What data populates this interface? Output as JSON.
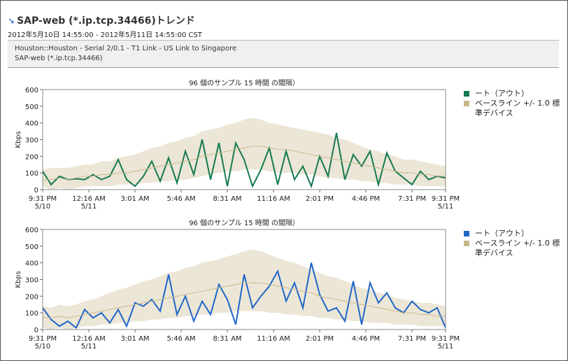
{
  "header": {
    "title": "SAP-web (*.ip.tcp.34466)トレンド",
    "range": "2012年5月10日 14:55:00 - 2012年5月11日 14:55:00 CST",
    "info": [
      "Houston::Houston - Serial 2/0.1 - T1 Link - US Link to Singapore",
      "SAP-web (*.ip.tcp.34466)"
    ]
  },
  "chart_data": [
    {
      "type": "line",
      "title": "96 個のサンプル 15 時間 の間隔）",
      "ylabel": "Kbps",
      "x": [
        0,
        0.5,
        1,
        1.5,
        2,
        2.5,
        3,
        3.5,
        4,
        4.5,
        5,
        5.5,
        6,
        6.5,
        7,
        7.5,
        8,
        8.5,
        9,
        9.5,
        10,
        10.5,
        11,
        11.5,
        12,
        12.5,
        13,
        13.5,
        14,
        14.5,
        15,
        15.5,
        16,
        16.5,
        17,
        17.5,
        18,
        18.5,
        19,
        19.5,
        20,
        20.5,
        21,
        21.5,
        22,
        22.5,
        23,
        23.5,
        24
      ],
      "xlim": [
        0,
        24
      ],
      "ylim": [
        0,
        600
      ],
      "yticks": [
        0,
        100,
        200,
        300,
        400,
        500,
        600
      ],
      "xticks": [
        {
          "value": 0,
          "label": "9:31 PM",
          "date": "5/10"
        },
        {
          "value": 2.75,
          "label": "12:16 AM",
          "date": "5/11"
        },
        {
          "value": 5.5,
          "label": "3:01 AM"
        },
        {
          "value": 8.25,
          "label": "5:46 AM"
        },
        {
          "value": 11,
          "label": "8:31 AM"
        },
        {
          "value": 13.75,
          "label": "11:16 AM"
        },
        {
          "value": 16.5,
          "label": "2:01 PM"
        },
        {
          "value": 19.25,
          "label": "4:46 PM"
        },
        {
          "value": 22,
          "label": "7:31 PM"
        },
        {
          "value": 24,
          "label": "9:31 PM",
          "date": "5/11"
        }
      ],
      "series": [
        {
          "name": "ート（アウト）",
          "color": "#137a4f",
          "values": [
            110,
            30,
            80,
            60,
            65,
            60,
            90,
            60,
            80,
            180,
            60,
            20,
            80,
            170,
            50,
            190,
            40,
            230,
            90,
            300,
            60,
            280,
            20,
            280,
            180,
            20,
            120,
            250,
            30,
            230,
            60,
            140,
            20,
            200,
            80,
            340,
            60,
            210,
            140,
            230,
            30,
            220,
            110,
            70,
            30,
            110,
            60,
            80,
            70
          ]
        },
        {
          "name": "ベースライン +/- 1.0 標準デバイス",
          "color": "#c8b88a",
          "values": [
            60,
            60,
            70,
            60,
            70,
            80,
            80,
            90,
            90,
            100,
            100,
            110,
            120,
            130,
            140,
            150,
            160,
            170,
            180,
            200,
            210,
            220,
            230,
            240,
            250,
            260,
            260,
            250,
            240,
            240,
            230,
            220,
            210,
            200,
            190,
            180,
            170,
            160,
            150,
            140,
            130,
            120,
            110,
            100,
            100,
            90,
            90,
            80,
            80
          ],
          "lower": [
            20,
            0,
            10,
            0,
            10,
            20,
            20,
            20,
            20,
            30,
            30,
            30,
            40,
            40,
            50,
            50,
            60,
            60,
            70,
            80,
            90,
            100,
            110,
            110,
            120,
            120,
            120,
            110,
            100,
            100,
            100,
            90,
            90,
            80,
            70,
            70,
            60,
            60,
            50,
            50,
            40,
            40,
            30,
            30,
            30,
            20,
            20,
            20,
            20
          ],
          "upper": [
            120,
            130,
            130,
            130,
            140,
            150,
            150,
            170,
            170,
            190,
            200,
            210,
            230,
            250,
            260,
            280,
            290,
            310,
            320,
            350,
            360,
            370,
            390,
            400,
            420,
            430,
            420,
            400,
            390,
            380,
            370,
            360,
            350,
            340,
            330,
            310,
            300,
            280,
            260,
            240,
            230,
            210,
            200,
            180,
            180,
            170,
            160,
            150,
            140
          ]
        }
      ]
    },
    {
      "type": "line",
      "title": "96 個のサンプル 15 時間 の間隔）",
      "ylabel": "Kbps",
      "x": [
        0,
        0.5,
        1,
        1.5,
        2,
        2.5,
        3,
        3.5,
        4,
        4.5,
        5,
        5.5,
        6,
        6.5,
        7,
        7.5,
        8,
        8.5,
        9,
        9.5,
        10,
        10.5,
        11,
        11.5,
        12,
        12.5,
        13,
        13.5,
        14,
        14.5,
        15,
        15.5,
        16,
        16.5,
        17,
        17.5,
        18,
        18.5,
        19,
        19.5,
        20,
        20.5,
        21,
        21.5,
        22,
        22.5,
        23,
        23.5,
        24
      ],
      "xlim": [
        0,
        24
      ],
      "ylim": [
        0,
        600
      ],
      "yticks": [
        0,
        100,
        200,
        300,
        400,
        500,
        600
      ],
      "xticks": [
        {
          "value": 0,
          "label": "9:31 PM",
          "date": "5/10"
        },
        {
          "value": 2.75,
          "label": "12:16 AM",
          "date": "5/11"
        },
        {
          "value": 5.5,
          "label": "3:01 AM"
        },
        {
          "value": 8.25,
          "label": "5:46 AM"
        },
        {
          "value": 11,
          "label": "8:31 AM"
        },
        {
          "value": 13.75,
          "label": "11:16 AM"
        },
        {
          "value": 16.5,
          "label": "2:01 PM"
        },
        {
          "value": 19.25,
          "label": "4:46 PM"
        },
        {
          "value": 22,
          "label": "7:31 PM"
        },
        {
          "value": 24,
          "label": "9:31 PM",
          "date": "5/11"
        }
      ],
      "series": [
        {
          "name": "ート（アウト）",
          "color": "#1f66c9",
          "values": [
            130,
            60,
            20,
            50,
            10,
            120,
            70,
            100,
            40,
            120,
            20,
            160,
            140,
            180,
            110,
            330,
            90,
            200,
            50,
            170,
            90,
            270,
            180,
            30,
            330,
            130,
            200,
            260,
            350,
            170,
            280,
            130,
            400,
            210,
            110,
            130,
            50,
            290,
            30,
            280,
            160,
            220,
            130,
            100,
            170,
            120,
            100,
            130,
            10
          ]
        },
        {
          "name": "ベースライン +/- 1.0 標準デバイス",
          "color": "#c8b88a",
          "values": [
            70,
            70,
            80,
            70,
            80,
            90,
            100,
            110,
            120,
            130,
            140,
            150,
            160,
            170,
            180,
            190,
            200,
            210,
            220,
            230,
            240,
            250,
            260,
            270,
            280,
            280,
            280,
            270,
            260,
            250,
            240,
            230,
            220,
            200,
            190,
            180,
            170,
            160,
            150,
            140,
            130,
            120,
            110,
            100,
            100,
            90,
            90,
            80,
            80
          ],
          "lower": [
            10,
            0,
            10,
            0,
            10,
            20,
            20,
            30,
            30,
            40,
            40,
            50,
            50,
            60,
            60,
            70,
            70,
            80,
            80,
            90,
            90,
            100,
            100,
            110,
            110,
            110,
            110,
            100,
            100,
            90,
            90,
            80,
            80,
            70,
            70,
            60,
            60,
            50,
            50,
            40,
            40,
            40,
            30,
            30,
            30,
            20,
            20,
            20,
            20
          ],
          "upper": [
            140,
            130,
            150,
            140,
            150,
            170,
            180,
            200,
            220,
            240,
            250,
            270,
            290,
            300,
            320,
            340,
            350,
            370,
            380,
            400,
            410,
            420,
            440,
            450,
            470,
            480,
            470,
            450,
            430,
            410,
            400,
            380,
            360,
            340,
            320,
            310,
            290,
            270,
            250,
            240,
            220,
            210,
            190,
            180,
            170,
            160,
            160,
            150,
            140
          ]
        }
      ]
    }
  ]
}
